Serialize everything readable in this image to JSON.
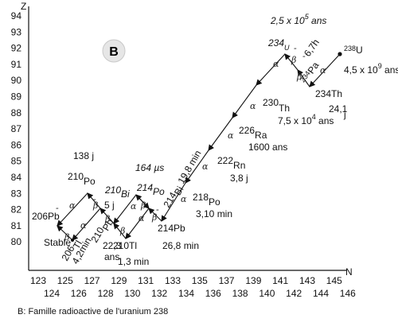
{
  "panel_badge": "B",
  "caption": "B: Famille radioactive de l'uranium 238",
  "axes": {
    "y_label": "Z",
    "x_label": "N",
    "y_ticks": [
      "94",
      "93",
      "92",
      "91",
      "90",
      "89",
      "88",
      "87",
      "86",
      "85",
      "84",
      "83",
      "82",
      "81",
      "80"
    ],
    "x_ticks_top": [
      "123",
      "125",
      "127",
      "129",
      "131",
      "133",
      "135",
      "137",
      "139",
      "141",
      "143",
      "145"
    ],
    "x_ticks_bottom": [
      "124",
      "126",
      "128",
      "130",
      "132",
      "134",
      "136",
      "138",
      "140",
      "142",
      "144",
      "146"
    ]
  },
  "decay_symbols": {
    "alpha": "α",
    "beta": "β",
    "minus": "-"
  },
  "nuclides": {
    "u238": {
      "mass": "238",
      "sym": "U",
      "half": "4,5 x 10",
      "exp": "9",
      "unit": " ans"
    },
    "th234": {
      "label": "234Th",
      "half": "24,1",
      "unit": "j"
    },
    "pa234": {
      "mass": "234",
      "sym": "Pa",
      "half": "6,7h"
    },
    "u234": {
      "mass": "234",
      "sym": "U",
      "half": "2,5 x 10",
      "exp": "5",
      "unit": " ans"
    },
    "th230": {
      "mass": "230",
      "sym": "Th",
      "half": "7,5 x 10",
      "exp": "4",
      "unit": " ans"
    },
    "ra226": {
      "mass": "226",
      "sym": "Ra",
      "half": "1600 ans"
    },
    "rn222": {
      "mass": "222",
      "sym": "Rn",
      "half": "3,8 j"
    },
    "po218": {
      "mass": "218",
      "sym": "Po",
      "half": "3,10 min"
    },
    "pb214": {
      "label": "214Pb",
      "half": "26,8 min"
    },
    "bi214": {
      "mass": "214",
      "sym": "Bi",
      "half": "19,8 min"
    },
    "po214": {
      "mass": "214",
      "sym": "Po",
      "half": "164 µs"
    },
    "tl210": {
      "label": "210Tl",
      "half": "1,3 min"
    },
    "pb210": {
      "mass": "210",
      "sym": "Pb",
      "half1": "22,3",
      "half2": "ans"
    },
    "bi210": {
      "mass": "210",
      "sym": "Bi",
      "half": "5 j"
    },
    "po210": {
      "mass": "210",
      "sym": "Po",
      "half": "138 j"
    },
    "tl206": {
      "mass": "206",
      "sym": "Tl",
      "half": "4,2min"
    },
    "pb206": {
      "label": "206Pb",
      "stable": "Stable"
    }
  }
}
